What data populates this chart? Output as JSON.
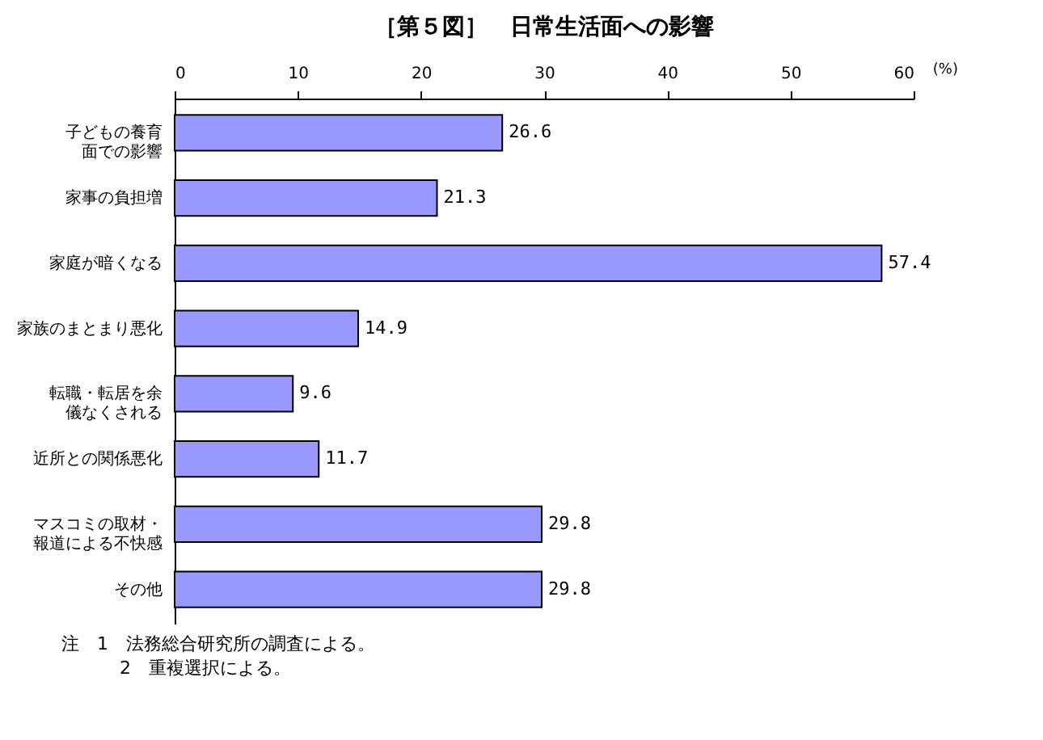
{
  "chart_data": {
    "type": "bar",
    "orientation": "horizontal",
    "title": "［第５図］　日常生活面への影響",
    "xlabel": "(%)",
    "categories": [
      "子どもの養育面での影響",
      "家事の負担増",
      "家庭が暗くなる",
      "家族のまとまり悪化",
      "転職・転居を余儀なくされる",
      "近所との関係悪化",
      "マスコミの取材・報道による不快感",
      "その他"
    ],
    "values": [
      26.6,
      21.3,
      57.4,
      14.9,
      9.6,
      11.7,
      29.8,
      29.8
    ],
    "color": "#9999ff",
    "xlim": [
      0,
      60
    ],
    "xticks": [
      0,
      10,
      20,
      30,
      40,
      50,
      60
    ],
    "data_labels": true,
    "grid": false,
    "annotations": [
      "注　1　法務総合研究所の調査による。",
      "2　重複選択による。"
    ]
  }
}
